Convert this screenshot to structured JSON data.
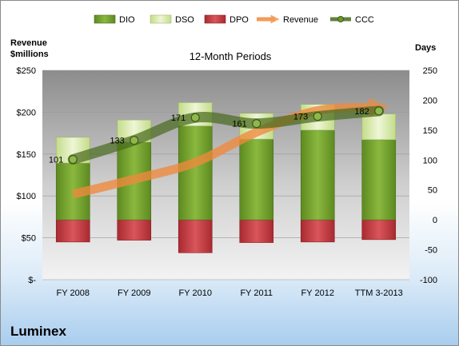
{
  "company": "Luminex",
  "chart_data": {
    "type": "bar",
    "title": "12-Month Periods",
    "ylabel_left": [
      "Revenue",
      "$millions"
    ],
    "ylabel_right": "Days",
    "categories": [
      "FY 2008",
      "FY 2009",
      "FY 2010",
      "FY 2011",
      "FY 2012",
      "TTM 3-2013"
    ],
    "left_axis": {
      "min": 0,
      "max": 250,
      "step": 50,
      "labels": [
        "$-",
        "$50",
        "$100",
        "$150",
        "$200",
        "$250"
      ]
    },
    "right_axis": {
      "min": -100,
      "max": 250,
      "step": 50,
      "labels": [
        "-100",
        "-50",
        "0",
        "50",
        "100",
        "150",
        "200",
        "250"
      ]
    },
    "legend": [
      "DIO",
      "DSO",
      "DPO",
      "Revenue",
      "CCC"
    ],
    "legend_position": "top",
    "series": [
      {
        "name": "DIO",
        "axis": "right",
        "stacked": true,
        "values": [
          95,
          130,
          157,
          135,
          150,
          134
        ]
      },
      {
        "name": "DSO",
        "axis": "right",
        "stacked": true,
        "values": [
          43,
          37,
          39,
          43,
          43,
          43
        ]
      },
      {
        "name": "DPO",
        "axis": "right",
        "stacked": true,
        "values": [
          -37,
          -34,
          -55,
          -38,
          -37,
          -33
        ]
      },
      {
        "name": "Revenue",
        "axis": "left",
        "type": "line",
        "values": [
          102,
          120,
          140,
          176,
          202,
          206
        ]
      },
      {
        "name": "CCC",
        "axis": "right",
        "type": "line",
        "values": [
          101,
          133,
          171,
          161,
          173,
          182
        ]
      }
    ],
    "ccc_labels": [
      "101",
      "133",
      "171",
      "161",
      "173",
      "182"
    ],
    "colors": {
      "DIO": "#6e9a28",
      "DSO": "#d6e8a6",
      "DPO": "#c0393f",
      "Revenue": "#f08a3c",
      "CCC": "#4a6b1f",
      "plot_bg": "#c8c8c8"
    }
  }
}
